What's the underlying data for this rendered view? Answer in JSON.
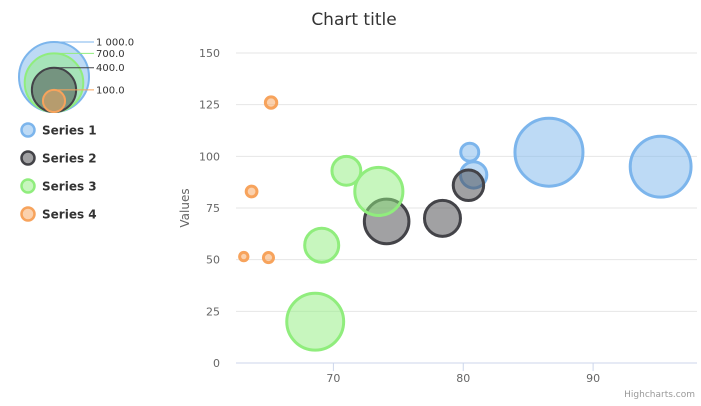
{
  "credits": "Highcharts.com",
  "chart_data": {
    "type": "scatter",
    "subtype": "bubble",
    "title": "Chart title",
    "xlabel": "",
    "ylabel": "Values",
    "xlim": [
      62.5,
      98
    ],
    "ylim": [
      0,
      150
    ],
    "x_ticks": [
      70,
      80,
      90
    ],
    "y_ticks": [
      0,
      25,
      50,
      75,
      100,
      125,
      150
    ],
    "grid": "horizontal",
    "legend_position": "left",
    "bubble_size_legend": [
      "1 000.0",
      "700.0",
      "400.0",
      "100.0"
    ],
    "bubble_size_values": [
      1000,
      700,
      400,
      100
    ],
    "series": [
      {
        "name": "Series 1",
        "color": "#7cb5ec",
        "points": [
          {
            "x": 80.5,
            "y": 102,
            "z": 70
          },
          {
            "x": 80.8,
            "y": 91,
            "z": 150
          },
          {
            "x": 86.6,
            "y": 102,
            "z": 1000
          },
          {
            "x": 95.2,
            "y": 95,
            "z": 800
          }
        ]
      },
      {
        "name": "Series 2",
        "color": "#434348",
        "points": [
          {
            "x": 74.1,
            "y": 68.5,
            "z": 430
          },
          {
            "x": 78.4,
            "y": 70,
            "z": 280
          },
          {
            "x": 80.4,
            "y": 86,
            "z": 200
          }
        ]
      },
      {
        "name": "Series 3",
        "color": "#90ed7d",
        "points": [
          {
            "x": 68.6,
            "y": 20,
            "z": 700
          },
          {
            "x": 69.1,
            "y": 57,
            "z": 250
          },
          {
            "x": 71.0,
            "y": 93,
            "z": 180
          },
          {
            "x": 73.5,
            "y": 83,
            "z": 500
          }
        ]
      },
      {
        "name": "Series 4",
        "color": "#f7a35c",
        "points": [
          {
            "x": 63.1,
            "y": 51.5,
            "z": 15
          },
          {
            "x": 63.7,
            "y": 83,
            "z": 25
          },
          {
            "x": 65.0,
            "y": 51,
            "z": 22
          },
          {
            "x": 65.2,
            "y": 126,
            "z": 28
          }
        ]
      }
    ]
  }
}
